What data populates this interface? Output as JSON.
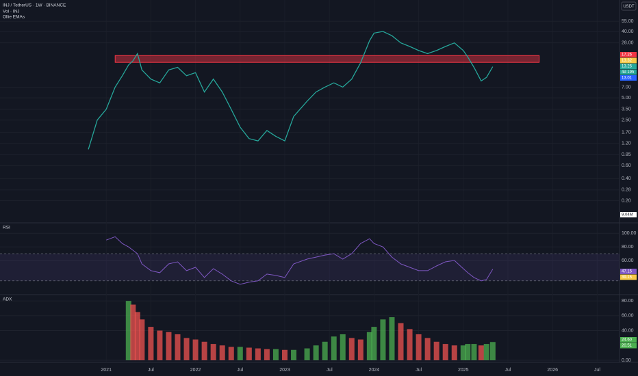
{
  "header": {
    "symbol": "INJ / TetherUS · 1W · BINANCE",
    "volume": "Vol · INJ",
    "indicator": "Ollie EMAs",
    "currency": "USDT"
  },
  "times": [
    2020.8,
    2020.9,
    2021.0,
    2021.1,
    2021.18,
    2021.25,
    2021.3,
    2021.35,
    2021.4,
    2021.5,
    2021.6,
    2021.7,
    2021.8,
    2021.9,
    2022.0,
    2022.1,
    2022.2,
    2022.3,
    2022.4,
    2022.5,
    2022.6,
    2022.7,
    2022.8,
    2022.9,
    2023.0,
    2023.1,
    2023.25,
    2023.35,
    2023.45,
    2023.55,
    2023.65,
    2023.75,
    2023.85,
    2023.95,
    2024.0,
    2024.1,
    2024.2,
    2024.3,
    2024.4,
    2024.5,
    2024.6,
    2024.7,
    2024.8,
    2024.9,
    2025.0,
    2025.05,
    2025.12,
    2025.2,
    2025.26,
    2025.33
  ],
  "time_axis": {
    "lim": [
      2019.81,
      2026.75
    ],
    "ticks": [
      {
        "value": 2021,
        "label": "2021"
      },
      {
        "value": 2021.5,
        "label": "Jul"
      },
      {
        "value": 2022,
        "label": "2022"
      },
      {
        "value": 2022.5,
        "label": "Jul"
      },
      {
        "value": 2023,
        "label": "2023"
      },
      {
        "value": 2023.5,
        "label": "Jul"
      },
      {
        "value": 2024,
        "label": "2024"
      },
      {
        "value": 2024.5,
        "label": "Jul"
      },
      {
        "value": 2025,
        "label": "2025"
      },
      {
        "value": 2025.5,
        "label": "Jul"
      },
      {
        "value": 2026,
        "label": "2026"
      },
      {
        "value": 2026.5,
        "label": "Jul"
      }
    ]
  },
  "price_pane": {
    "log": true,
    "lim": [
      0.1,
      107
    ],
    "color": "#26a69a",
    "ticks": [
      {
        "value": 55,
        "label": "55.00"
      },
      {
        "value": 40,
        "label": "40.00"
      },
      {
        "value": 28,
        "label": "28.00"
      },
      {
        "value": 7,
        "label": "7.00"
      },
      {
        "value": 5,
        "label": "5.00"
      },
      {
        "value": 3.5,
        "label": "3.50"
      },
      {
        "value": 2.5,
        "label": "2.50"
      },
      {
        "value": 1.7,
        "label": "1.70"
      },
      {
        "value": 1.2,
        "label": "1.20"
      },
      {
        "value": 0.85,
        "label": "0.85"
      },
      {
        "value": 0.6,
        "label": "0.60"
      },
      {
        "value": 0.4,
        "label": "0.40"
      },
      {
        "value": 0.28,
        "label": "0.28"
      },
      {
        "value": 0.2,
        "label": "0.20"
      }
    ],
    "zone": {
      "low": 15.2,
      "high": 18.8,
      "start": 2021.1,
      "end": 2025.85,
      "color": "#f23645"
    },
    "closes": [
      1.0,
      2.5,
      3.5,
      7,
      10,
      14,
      16,
      20,
      12,
      9,
      8,
      12,
      13,
      10,
      11,
      6,
      9,
      6,
      3.5,
      2.0,
      1.4,
      1.3,
      1.8,
      1.5,
      1.3,
      2.8,
      4.5,
      6,
      7,
      8,
      7,
      9,
      15,
      30,
      38,
      40,
      35,
      28,
      25,
      22,
      20,
      22,
      25,
      28,
      22,
      18,
      13,
      8.5,
      9.5,
      13.25
    ],
    "tags": [
      {
        "text": "17.26",
        "color": "#f23645"
      },
      {
        "text": "13.32",
        "color": "#f7c948"
      },
      {
        "text": "13.25",
        "color": "#26a69a"
      },
      {
        "text": "4d 19h",
        "color": "#26a69a"
      },
      {
        "text": "13.01",
        "color": "#2962ff"
      }
    ],
    "volume_tag": "9.04M"
  },
  "rsi": {
    "title": "RSI",
    "lim": [
      9.7,
      115.4
    ],
    "band": [
      30,
      70
    ],
    "color": "#7e57c2",
    "ticks": [
      {
        "value": 100,
        "label": "100.00"
      },
      {
        "value": 80,
        "label": "80.00"
      },
      {
        "value": 60,
        "label": "60.00"
      }
    ],
    "values": [
      null,
      null,
      90,
      95,
      85,
      80,
      75,
      70,
      55,
      45,
      42,
      55,
      58,
      45,
      50,
      35,
      48,
      40,
      30,
      25,
      28,
      30,
      40,
      38,
      35,
      55,
      62,
      65,
      68,
      70,
      62,
      70,
      85,
      92,
      85,
      80,
      65,
      55,
      50,
      45,
      45,
      52,
      58,
      60,
      48,
      42,
      35,
      30,
      32,
      47.15
    ],
    "tags": [
      {
        "text": "47.15",
        "color": "#7e57c2"
      },
      {
        "text": "39.15",
        "color": "#f7c948"
      }
    ]
  },
  "adx": {
    "title": "ADX",
    "lim": [
      -2.8,
      88.4
    ],
    "ticks": [
      {
        "value": 80,
        "label": "80.00"
      },
      {
        "value": 60,
        "label": "60.00"
      },
      {
        "value": 40,
        "label": "40.00"
      },
      {
        "value": 0,
        "label": "0.00"
      }
    ],
    "values": [
      null,
      null,
      null,
      null,
      null,
      80,
      75,
      65,
      55,
      45,
      40,
      38,
      35,
      30,
      28,
      25,
      22,
      20,
      18,
      18,
      17,
      16,
      15,
      15,
      14,
      14,
      16,
      20,
      25,
      32,
      35,
      30,
      28,
      38,
      45,
      55,
      58,
      50,
      42,
      35,
      30,
      25,
      22,
      20,
      20,
      22,
      22,
      20,
      22,
      24.6
    ],
    "tags": [
      {
        "text": "24.60",
        "color": "#4caf50"
      },
      {
        "text": "20.51",
        "color": "#4caf50"
      }
    ]
  }
}
